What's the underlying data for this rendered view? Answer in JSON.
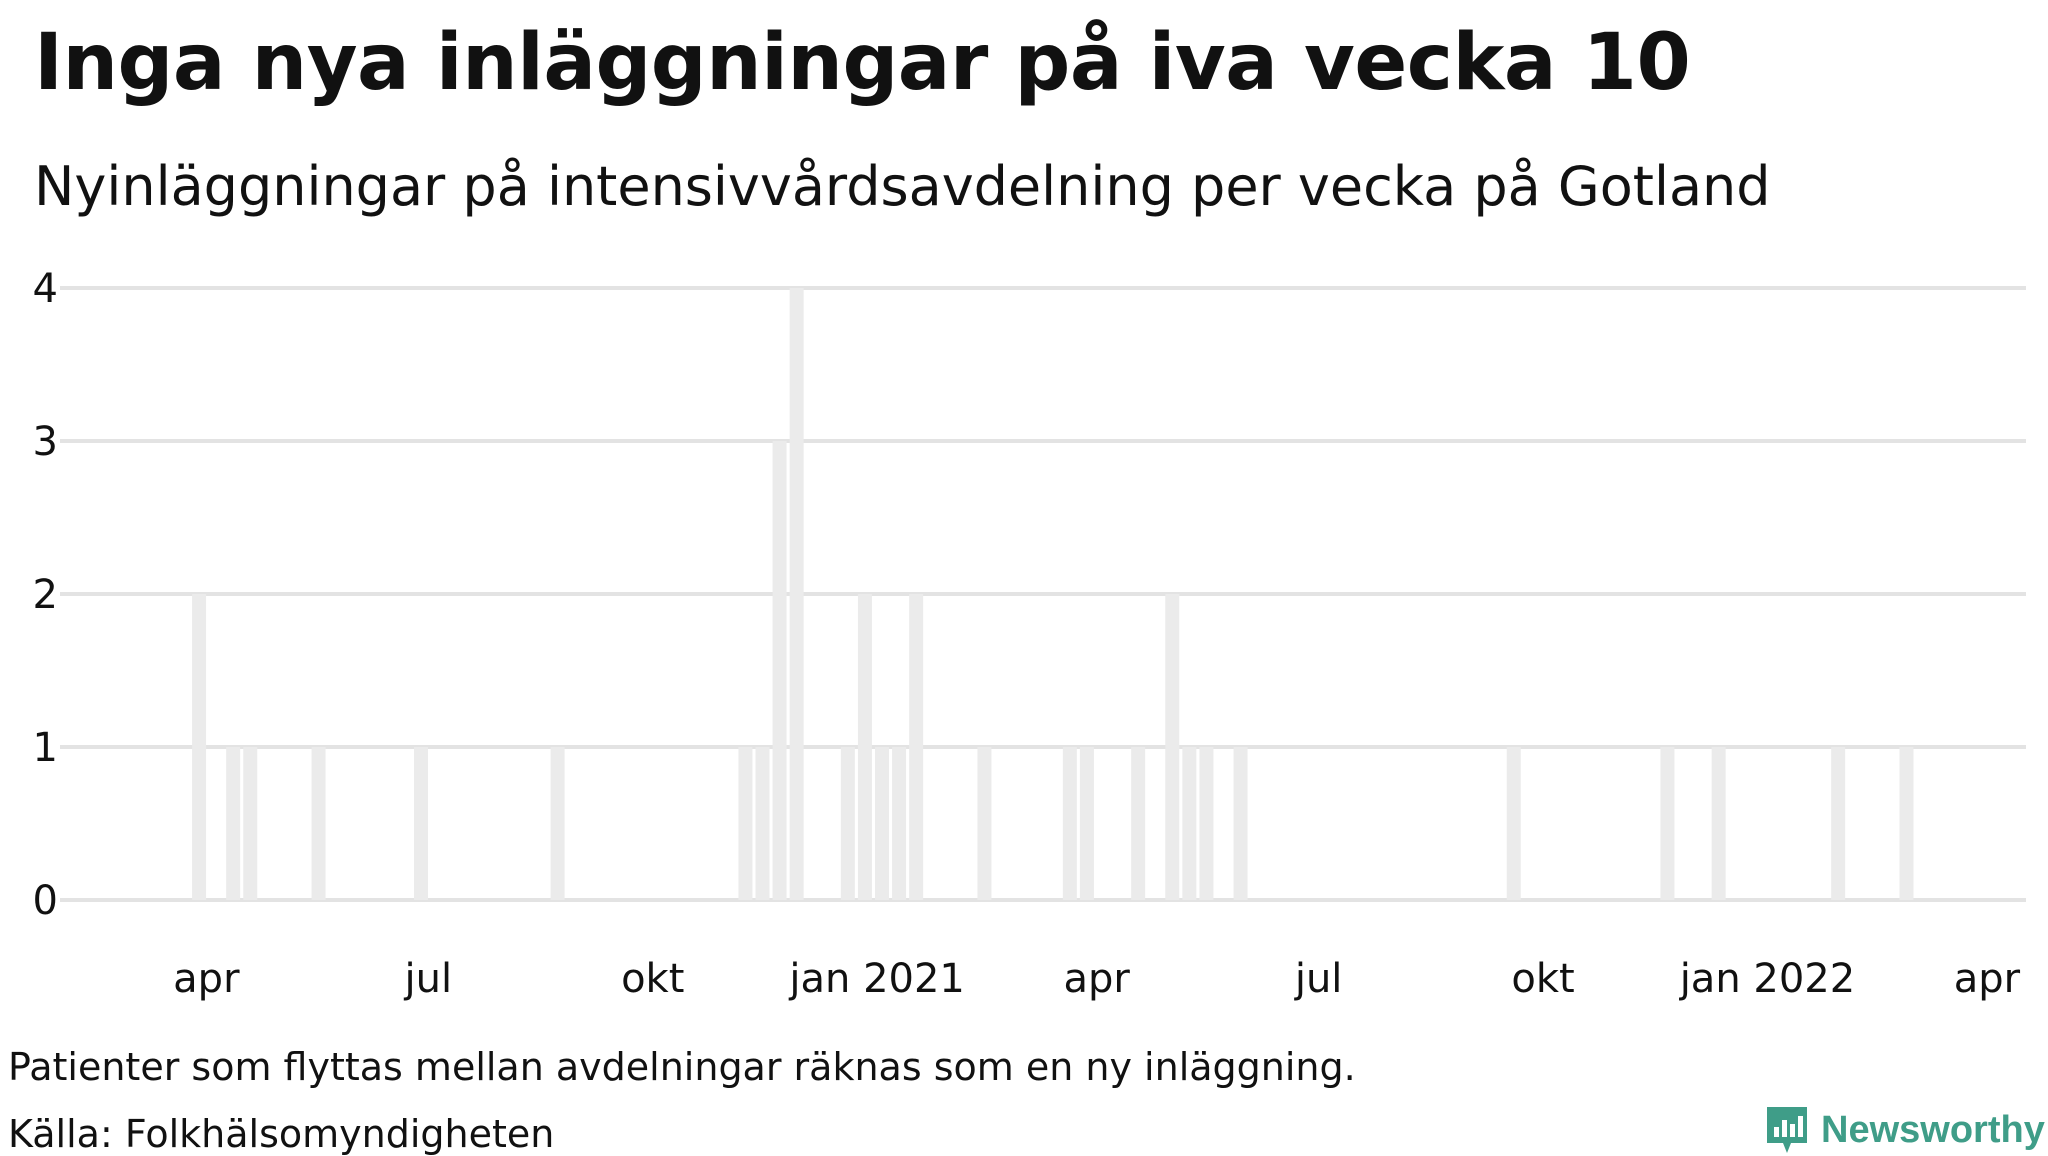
{
  "title": "Inga nya inläggningar på iva vecka 10",
  "subtitle": "Nyinläggningar på intensivvårdsavdelning per vecka på Gotland",
  "note": "Patienter som flyttas mellan avdelningar räknas som en ny inläggning.",
  "source": "Källa: Folkhälsomyndigheten",
  "brand": {
    "name": "Newsworthy",
    "icon": "bar-chart-speech-bubble-icon",
    "color": "#3f9d88"
  },
  "chart_data": {
    "type": "bar",
    "ylim": [
      0,
      4
    ],
    "y_ticks": [
      "0",
      "1",
      "2",
      "3",
      "4"
    ],
    "x_range": [
      "2020-02-01",
      "2022-04-17"
    ],
    "x_ticks": [
      {
        "date": "2020-04-01",
        "label": "apr"
      },
      {
        "date": "2020-07-01",
        "label": "jul"
      },
      {
        "date": "2020-10-01",
        "label": "okt"
      },
      {
        "date": "2021-01-01",
        "label": "jan 2021"
      },
      {
        "date": "2021-04-01",
        "label": "apr"
      },
      {
        "date": "2021-07-01",
        "label": "jul"
      },
      {
        "date": "2021-10-01",
        "label": "okt"
      },
      {
        "date": "2022-01-01",
        "label": "jan 2022"
      },
      {
        "date": "2022-04-01",
        "label": "apr"
      }
    ],
    "grid": true,
    "bar_color": "#ebebeb",
    "x": [
      "2020-03-29",
      "2020-04-12",
      "2020-04-19",
      "2020-05-17",
      "2020-06-28",
      "2020-08-23",
      "2020-11-08",
      "2020-11-15",
      "2020-11-22",
      "2020-11-29",
      "2020-12-20",
      "2020-12-27",
      "2021-01-03",
      "2021-01-10",
      "2021-01-17",
      "2021-02-14",
      "2021-03-21",
      "2021-03-28",
      "2021-04-18",
      "2021-05-02",
      "2021-05-09",
      "2021-05-16",
      "2021-05-30",
      "2021-09-19",
      "2021-11-21",
      "2021-12-12",
      "2022-01-30",
      "2022-02-27"
    ],
    "values": [
      2,
      1,
      1,
      1,
      1,
      1,
      1,
      1,
      3,
      4,
      1,
      2,
      1,
      1,
      2,
      1,
      1,
      1,
      1,
      2,
      1,
      1,
      1,
      1,
      1,
      1,
      1,
      1
    ]
  }
}
